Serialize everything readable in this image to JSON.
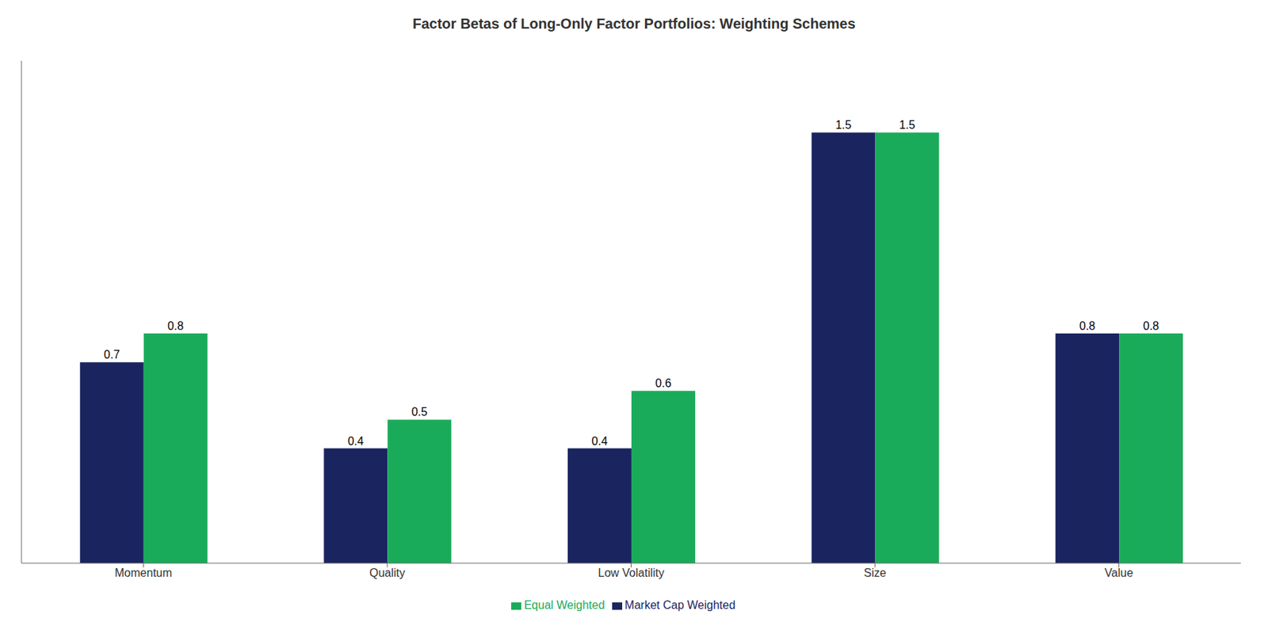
{
  "chart_data": {
    "type": "bar",
    "title": "Factor Betas of Long-Only Factor Portfolios: Weighting Schemes",
    "categories": [
      "Momentum",
      "Quality",
      "Low Volatility",
      "Size",
      "Value"
    ],
    "series": [
      {
        "name": "Market Cap Weighted",
        "color": "#1a2560",
        "values": [
          0.7,
          0.4,
          0.4,
          1.5,
          0.8
        ]
      },
      {
        "name": "Equal Weighted",
        "color": "#1aab5a",
        "values": [
          0.8,
          0.5,
          0.6,
          1.5,
          0.8
        ]
      }
    ],
    "ylim": [
      0,
      1.75
    ],
    "grid": false,
    "legend": "bottom",
    "data_labels": true,
    "tick_labels": "x"
  }
}
